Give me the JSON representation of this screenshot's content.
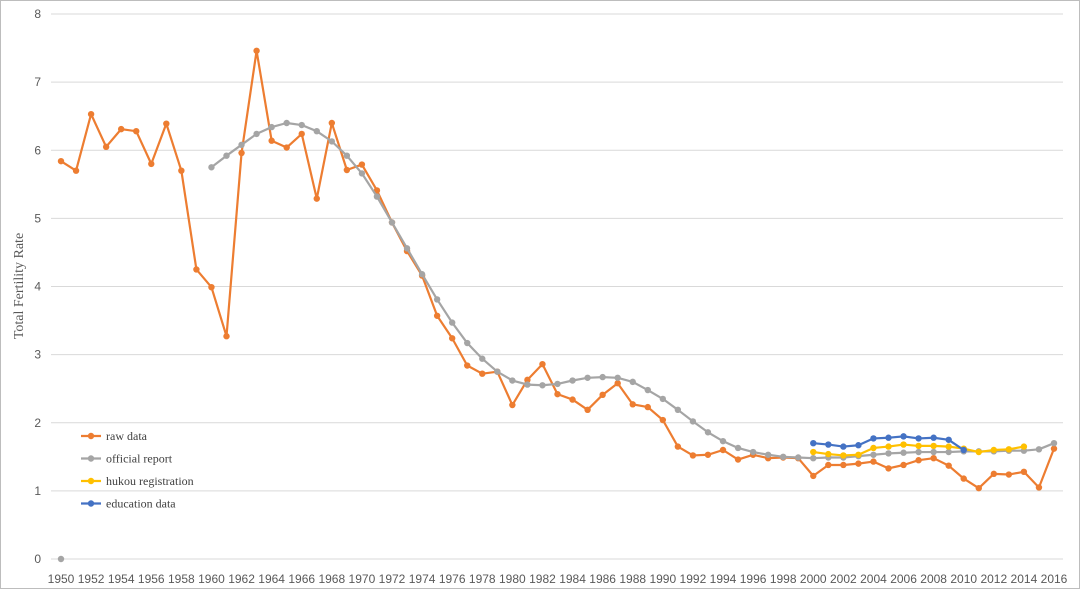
{
  "chart_data": {
    "type": "line",
    "title": "",
    "xlabel": "",
    "ylabel": "Total Fertility Rate",
    "xlim": [
      1950,
      2016
    ],
    "ylim": [
      0,
      8
    ],
    "yticks": [
      0,
      1,
      2,
      3,
      4,
      5,
      6,
      7,
      8
    ],
    "xticks": [
      1950,
      1952,
      1954,
      1956,
      1958,
      1960,
      1962,
      1964,
      1966,
      1968,
      1970,
      1972,
      1974,
      1976,
      1978,
      1980,
      1982,
      1984,
      1986,
      1988,
      1990,
      1992,
      1994,
      1996,
      1998,
      2000,
      2002,
      2004,
      2006,
      2008,
      2010,
      2012,
      2014,
      2016
    ],
    "grid": "horizontal",
    "legend_position": "bottom-left",
    "series": [
      {
        "name": "raw data",
        "color": "#ED7D31",
        "x": [
          1950,
          1951,
          1952,
          1953,
          1954,
          1955,
          1956,
          1957,
          1958,
          1959,
          1960,
          1961,
          1962,
          1963,
          1964,
          1965,
          1966,
          1967,
          1968,
          1969,
          1970,
          1971,
          1972,
          1973,
          1974,
          1975,
          1976,
          1977,
          1978,
          1979,
          1980,
          1981,
          1982,
          1983,
          1984,
          1985,
          1986,
          1987,
          1988,
          1989,
          1990,
          1991,
          1992,
          1993,
          1994,
          1995,
          1996,
          1997,
          1998,
          1999,
          2000,
          2001,
          2002,
          2003,
          2004,
          2005,
          2006,
          2007,
          2008,
          2009,
          2010,
          2011,
          2012,
          2013,
          2014,
          2015,
          2016
        ],
        "y": [
          5.84,
          5.7,
          6.53,
          6.05,
          6.31,
          6.28,
          5.8,
          6.39,
          5.7,
          4.25,
          3.99,
          3.27,
          5.96,
          7.46,
          6.14,
          6.04,
          6.24,
          5.29,
          6.4,
          5.71,
          5.79,
          5.41,
          4.94,
          4.52,
          4.16,
          3.57,
          3.24,
          2.84,
          2.72,
          2.75,
          2.26,
          2.63,
          2.86,
          2.42,
          2.34,
          2.19,
          2.41,
          2.58,
          2.27,
          2.23,
          2.04,
          1.65,
          1.52,
          1.53,
          1.6,
          1.46,
          1.53,
          1.48,
          1.49,
          1.48,
          1.22,
          1.38,
          1.38,
          1.4,
          1.43,
          1.33,
          1.38,
          1.45,
          1.48,
          1.37,
          1.18,
          1.04,
          1.25,
          1.24,
          1.28,
          1.05,
          1.62
        ]
      },
      {
        "name": "official report",
        "color": "#A5A5A5",
        "x": [
          1950,
          1960,
          1961,
          1962,
          1963,
          1964,
          1965,
          1966,
          1967,
          1968,
          1969,
          1970,
          1971,
          1972,
          1973,
          1974,
          1975,
          1976,
          1977,
          1978,
          1979,
          1980,
          1981,
          1982,
          1983,
          1984,
          1985,
          1986,
          1987,
          1988,
          1989,
          1990,
          1991,
          1992,
          1993,
          1994,
          1995,
          1996,
          1997,
          1998,
          1999,
          2000,
          2001,
          2002,
          2003,
          2004,
          2005,
          2006,
          2007,
          2008,
          2009,
          2010,
          2011,
          2012,
          2013,
          2014,
          2015,
          2016
        ],
        "y": [
          0,
          5.75,
          5.92,
          6.08,
          6.24,
          6.34,
          6.4,
          6.37,
          6.28,
          6.13,
          5.92,
          5.66,
          5.32,
          4.94,
          4.56,
          4.18,
          3.81,
          3.47,
          3.17,
          2.94,
          2.75,
          2.62,
          2.56,
          2.55,
          2.57,
          2.62,
          2.66,
          2.67,
          2.66,
          2.6,
          2.48,
          2.35,
          2.19,
          2.02,
          1.86,
          1.73,
          1.63,
          1.57,
          1.53,
          1.5,
          1.49,
          1.48,
          1.49,
          1.49,
          1.51,
          1.53,
          1.55,
          1.56,
          1.57,
          1.57,
          1.57,
          1.58,
          1.58,
          1.58,
          1.59,
          1.59,
          1.61,
          1.7
        ]
      },
      {
        "name": "hukou registration",
        "color": "#FFC000",
        "x": [
          2000,
          2001,
          2002,
          2003,
          2004,
          2005,
          2006,
          2007,
          2008,
          2009,
          2010,
          2011,
          2012,
          2013,
          2014
        ],
        "y": [
          1.57,
          1.54,
          1.52,
          1.53,
          1.63,
          1.65,
          1.68,
          1.66,
          1.66,
          1.65,
          1.62,
          1.57,
          1.6,
          1.61,
          1.65
        ]
      },
      {
        "name": "education data",
        "color": "#4472C4",
        "x": [
          2000,
          2001,
          2002,
          2003,
          2004,
          2005,
          2006,
          2007,
          2008,
          2009,
          2010
        ],
        "y": [
          1.7,
          1.68,
          1.65,
          1.67,
          1.77,
          1.78,
          1.8,
          1.77,
          1.78,
          1.75,
          1.6
        ]
      }
    ]
  }
}
